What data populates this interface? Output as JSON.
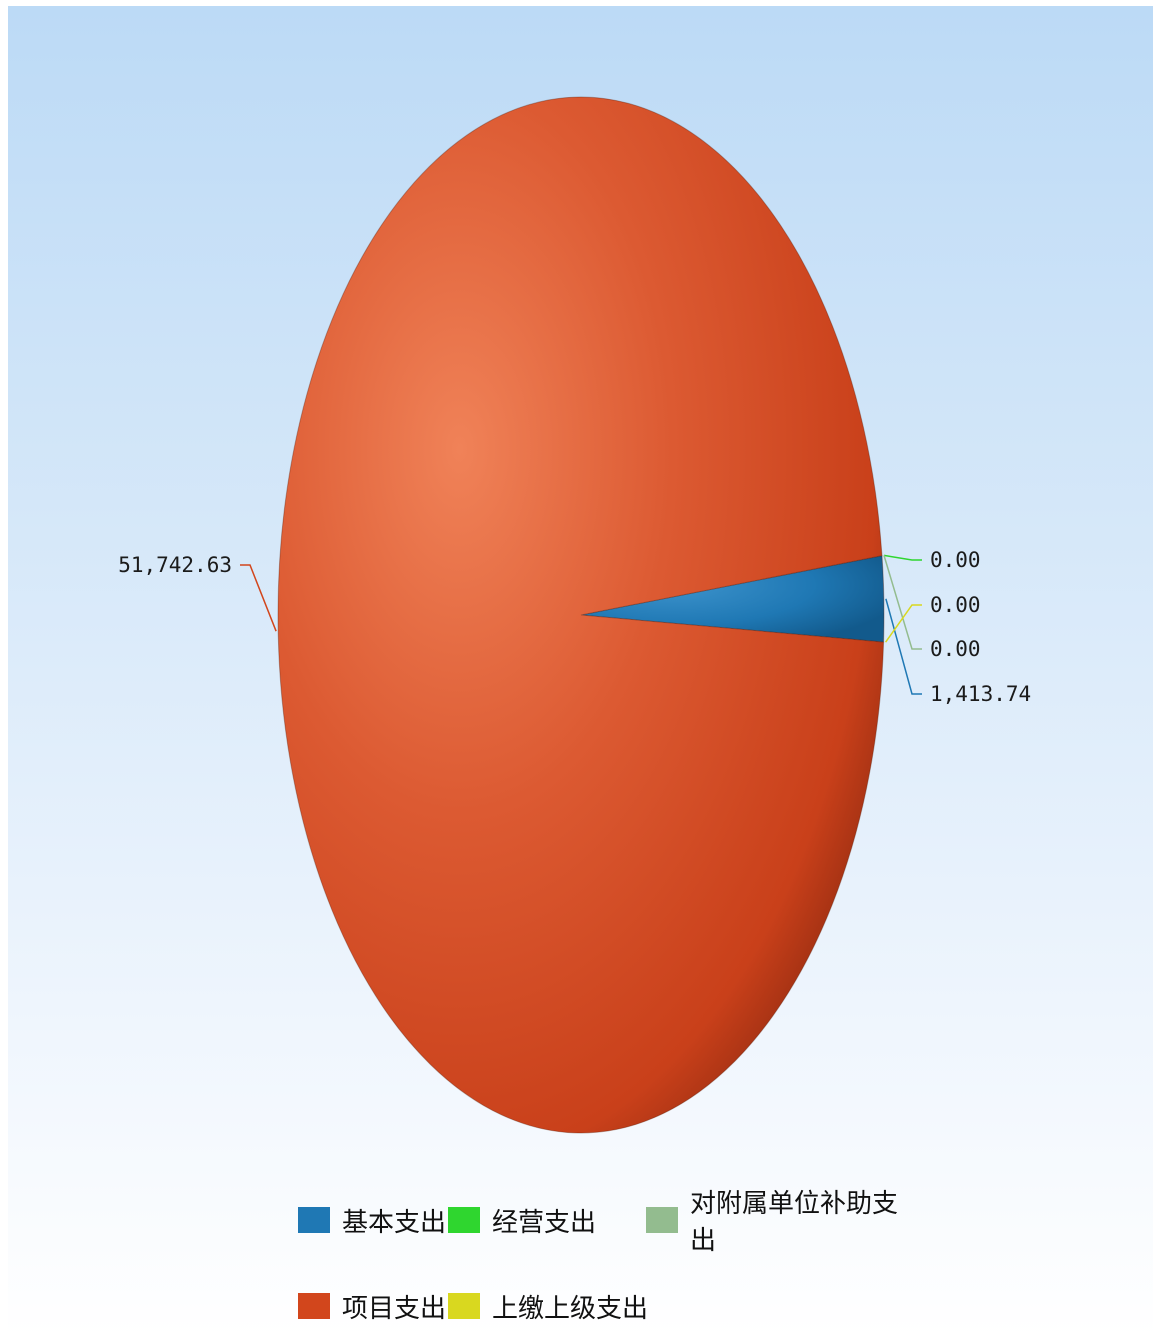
{
  "chart_data": {
    "type": "pie",
    "slices": [
      {
        "name": "基本支出",
        "value": 1413.74,
        "label": "1,413.74",
        "color": "#1f78b4"
      },
      {
        "name": "经营支出",
        "value": 0.0,
        "label": "0.00",
        "color": "#2fd62f"
      },
      {
        "name": "对附属单位补助支出",
        "value": 0.0,
        "label": "0.00",
        "color": "#93bc8f"
      },
      {
        "name": "项目支出",
        "value": 51742.63,
        "label": "51,742.63",
        "color": "#d2461c"
      },
      {
        "name": "上缴上级支出",
        "value": 0.0,
        "label": "0.00",
        "color": "#d9d81f"
      }
    ],
    "legend_position": "bottom",
    "grid": false
  }
}
